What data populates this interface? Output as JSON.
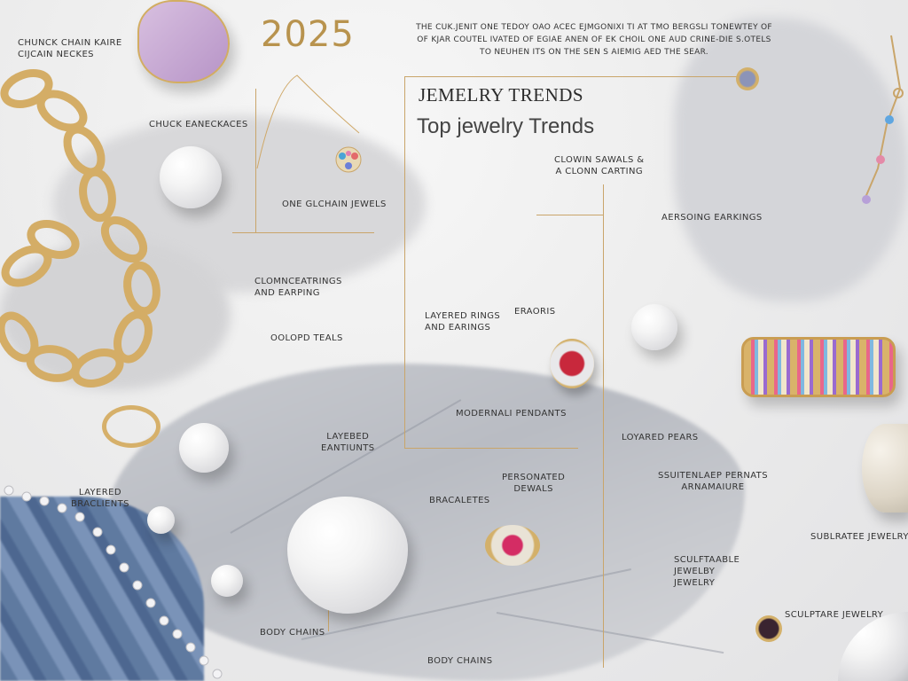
{
  "header": {
    "year": "2025",
    "intro": "THE CUK.JENIT ONE TEDOY OAO ACEC EJMGONIXI TI AT TMO BERGSLI TONEWTEY OF\nOF KJAR COUTEL IVATED OF EGIAE ANEN OF EK CHOIL ONE AUD CRINE-DIE S.OTELS\nTO NEUHEN ITS ON THE SEN S AIEMIG AED THE SEAR.",
    "title": "JEMELRY TRENDS",
    "subtitle": "Top jewelry Trends"
  },
  "labels": [
    "CHUNCK CHAIN KAIRE\nCIJCAIN NECKES",
    "CHUCK EANECKACES",
    "ONE GLCHAIN JEWELS",
    "CLOMNCEATRINGS\nAND EARPING",
    "OOLOPD TEALS",
    "LAYERED RINGS\nAND EARINGS",
    "ERAORIS",
    "CLOWIN SAWALS &\nA CLONN CARTING",
    "AERSOING EARKINGS",
    "MODERNALI PENDANTS",
    "LOYARED PEARS",
    "SSUITENLAEP PERNATS\nARNAMAIURE",
    "LAYEBED\nEANTIUNTS",
    "PERSONATED\nDEWALS",
    "LAYERED\nBRACLIENTS",
    "BRACALETES",
    "SUBLRATEE JEWELRY",
    "SCULFTAABLE\nJEWELBY\nJEWELRY",
    "SCULPTARE JEWELRY",
    "BODY CHAINS",
    "BODY CHAINS"
  ],
  "colors": {
    "gold": "#c9a56a",
    "year": "#b8934e",
    "text": "#333333",
    "amethyst": "#c3a3cf",
    "ruby": "#c8283c",
    "fabric": "#5f7aa0"
  }
}
